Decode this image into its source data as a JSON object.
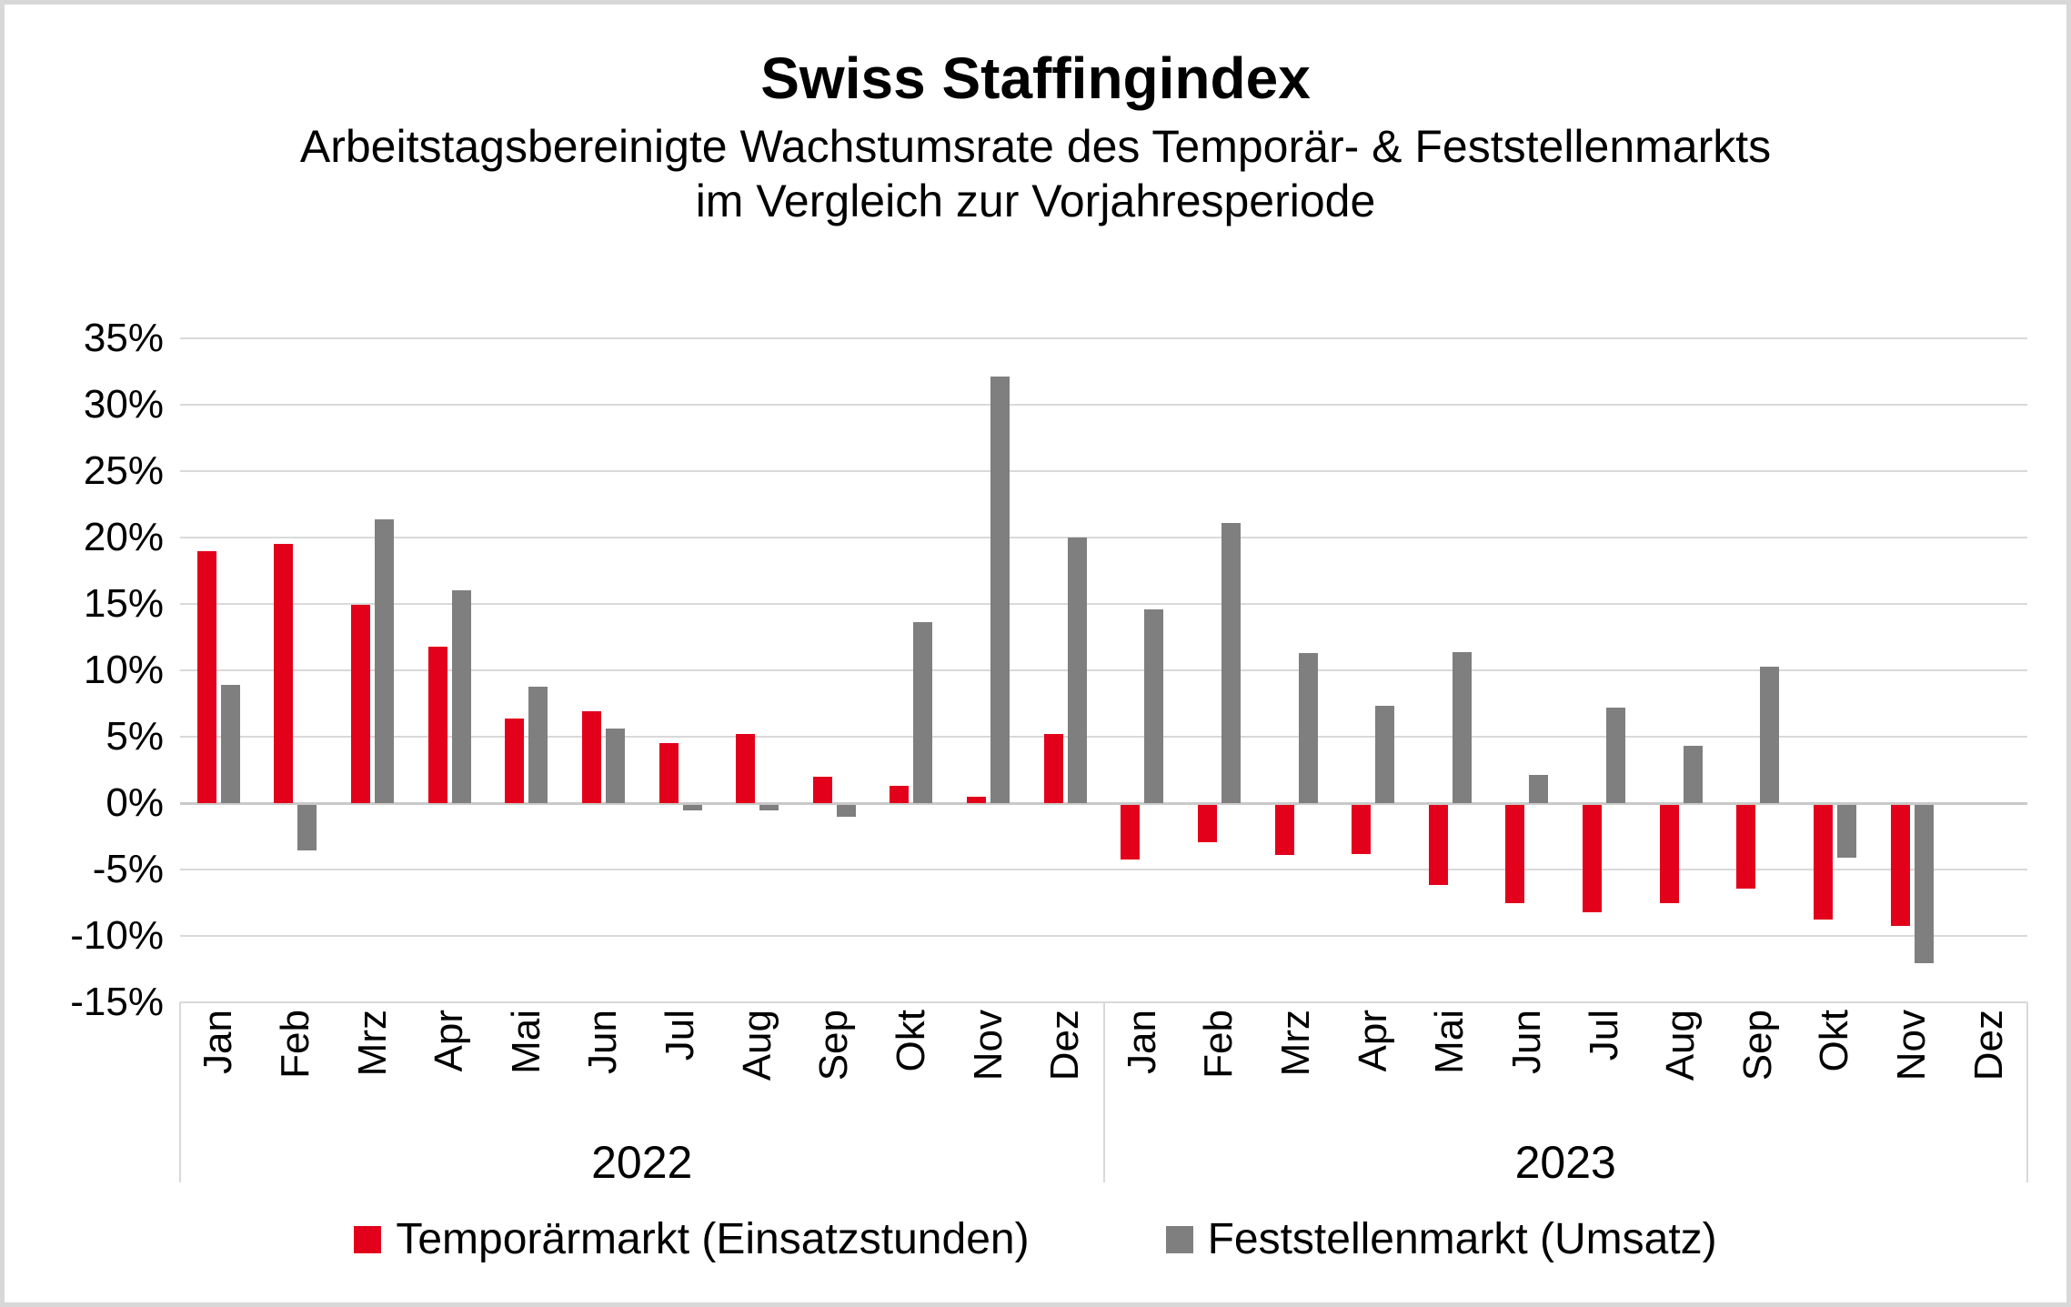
{
  "title": "Swiss Staffingindex",
  "subtitle_lines": [
    "Arbeitstagsbereinigte Wachstumsrate des Temporär- & Feststellenmarkts",
    "im Vergleich zur Vorjahresperiode"
  ],
  "colors": {
    "temporaermarkt_red": "#e3001b",
    "feststellenmarkt_gray": "#7f7f7f",
    "gridline": "#d9d9d9",
    "zero_line": "#c9c9c9",
    "separator": "#d9d9d9",
    "text": "#000000",
    "frame_border": "#d8d8d8"
  },
  "legend": [
    {
      "label": "Temporärmarkt (Einsatzstunden)",
      "color": "#e3001b"
    },
    {
      "label": "Feststellenmarkt (Umsatz)",
      "color": "#7f7f7f"
    }
  ],
  "chart_data": {
    "type": "bar",
    "title": "Swiss Staffingindex",
    "subtitle": "Arbeitstagsbereinigte Wachstumsrate des Temporär- & Feststellenmarkts im Vergleich zur Vorjahresperiode",
    "ylabel": "",
    "xlabel": "",
    "ylim": [
      -15,
      35
    ],
    "ytick_step": 5,
    "ytick_values": [
      35,
      30,
      25,
      20,
      15,
      10,
      5,
      0,
      -5,
      -10,
      -15
    ],
    "ytick_labels": [
      "35%",
      "30%",
      "25%",
      "20%",
      "15%",
      "10%",
      "5%",
      "0%",
      "-5%",
      "-10%",
      "-15%"
    ],
    "grid": true,
    "legend_position": "bottom",
    "year_groups": [
      {
        "label": "2022",
        "months": 12
      },
      {
        "label": "2023",
        "months": 12
      }
    ],
    "categories": [
      "Jan",
      "Feb",
      "Mrz",
      "Apr",
      "Mai",
      "Jun",
      "Jul",
      "Aug",
      "Sep",
      "Okt",
      "Nov",
      "Dez",
      "Jan",
      "Feb",
      "Mrz",
      "Apr",
      "Mai",
      "Jun",
      "Jul",
      "Aug",
      "Sep",
      "Okt",
      "Nov",
      "Dez"
    ],
    "series": [
      {
        "name": "Temporärmarkt (Einsatzstunden)",
        "color": "#e3001b",
        "values": [
          19.0,
          19.5,
          14.9,
          11.8,
          6.4,
          6.9,
          4.5,
          5.2,
          2.0,
          1.3,
          0.5,
          5.2,
          -4.1,
          -2.8,
          -3.8,
          -3.7,
          -6.0,
          -7.4,
          -8.1,
          -7.4,
          -6.3,
          -8.6,
          -9.1,
          null
        ]
      },
      {
        "name": "Feststellenmarkt (Umsatz)",
        "color": "#7f7f7f",
        "values": [
          8.9,
          -3.4,
          21.4,
          16.0,
          8.8,
          5.6,
          -0.4,
          -0.4,
          -0.9,
          13.6,
          32.1,
          20.0,
          14.6,
          21.1,
          11.3,
          7.3,
          11.4,
          2.1,
          7.2,
          4.3,
          10.3,
          -4.0,
          -11.9,
          null
        ]
      }
    ]
  }
}
